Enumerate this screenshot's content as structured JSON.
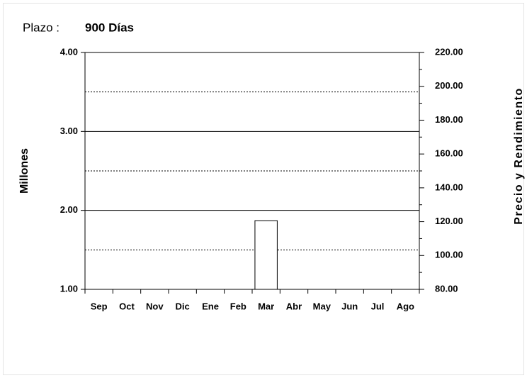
{
  "header": {
    "label": "Plazo :",
    "value": "900 Días"
  },
  "chart_data": {
    "type": "bar",
    "ylabel": "Millones",
    "y2label": "Precio y Rendimiento",
    "categories": [
      "Sep",
      "Oct",
      "Nov",
      "Dic",
      "Ene",
      "Feb",
      "Mar",
      "Abr",
      "May",
      "Jun",
      "Jul",
      "Ago"
    ],
    "values": [
      null,
      null,
      null,
      null,
      null,
      null,
      1.87,
      null,
      null,
      null,
      null,
      null
    ],
    "color": "#ffffff",
    "ylim": [
      1,
      4
    ],
    "yticks": [
      {
        "value": 1,
        "label": "1.00"
      },
      {
        "value": 2,
        "label": "2.00"
      },
      {
        "value": 3,
        "label": "3.00"
      },
      {
        "value": 4,
        "label": "4.00"
      }
    ],
    "yminor_grid": [
      1.5,
      2.5,
      3.5
    ],
    "y2lim": [
      80,
      220
    ],
    "y2ticks": [
      {
        "value": 80,
        "label": "80.00"
      },
      {
        "value": 100,
        "label": "100.00"
      },
      {
        "value": 120,
        "label": "120.00"
      },
      {
        "value": 140,
        "label": "140.00"
      },
      {
        "value": 160,
        "label": "160.00"
      },
      {
        "value": 180,
        "label": "180.00"
      },
      {
        "value": 200,
        "label": "200.00"
      },
      {
        "value": 220,
        "label": "220.00"
      }
    ],
    "y2minor_ticks": [
      90,
      110,
      130,
      150,
      170,
      190,
      210
    ],
    "grid": true
  }
}
